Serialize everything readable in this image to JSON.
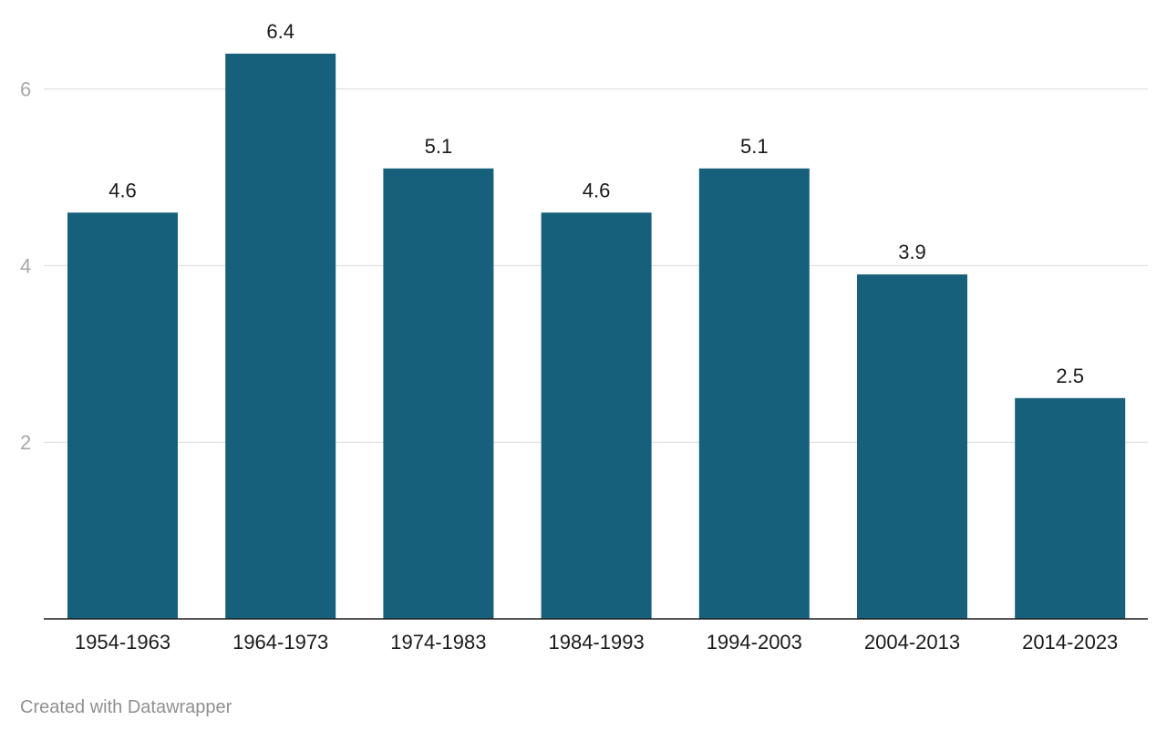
{
  "chart_data": {
    "type": "bar",
    "categories": [
      "1954-1963",
      "1964-1973",
      "1974-1983",
      "1984-1993",
      "1994-2003",
      "2004-2013",
      "2014-2023"
    ],
    "values": [
      4.6,
      6.4,
      5.1,
      4.6,
      5.1,
      3.9,
      2.5
    ],
    "data_labels": [
      "4.6",
      "6.4",
      "5.1",
      "4.6",
      "5.1",
      "3.9",
      "2.5"
    ],
    "y_ticks": [
      2,
      4,
      6
    ],
    "ylim": [
      0,
      6.4
    ],
    "grid": true,
    "bar_color": "#17607b",
    "grid_color": "#dcdcdc",
    "axis_color": "#1a1a1a"
  },
  "footer": {
    "credit": "Created with Datawrapper"
  }
}
